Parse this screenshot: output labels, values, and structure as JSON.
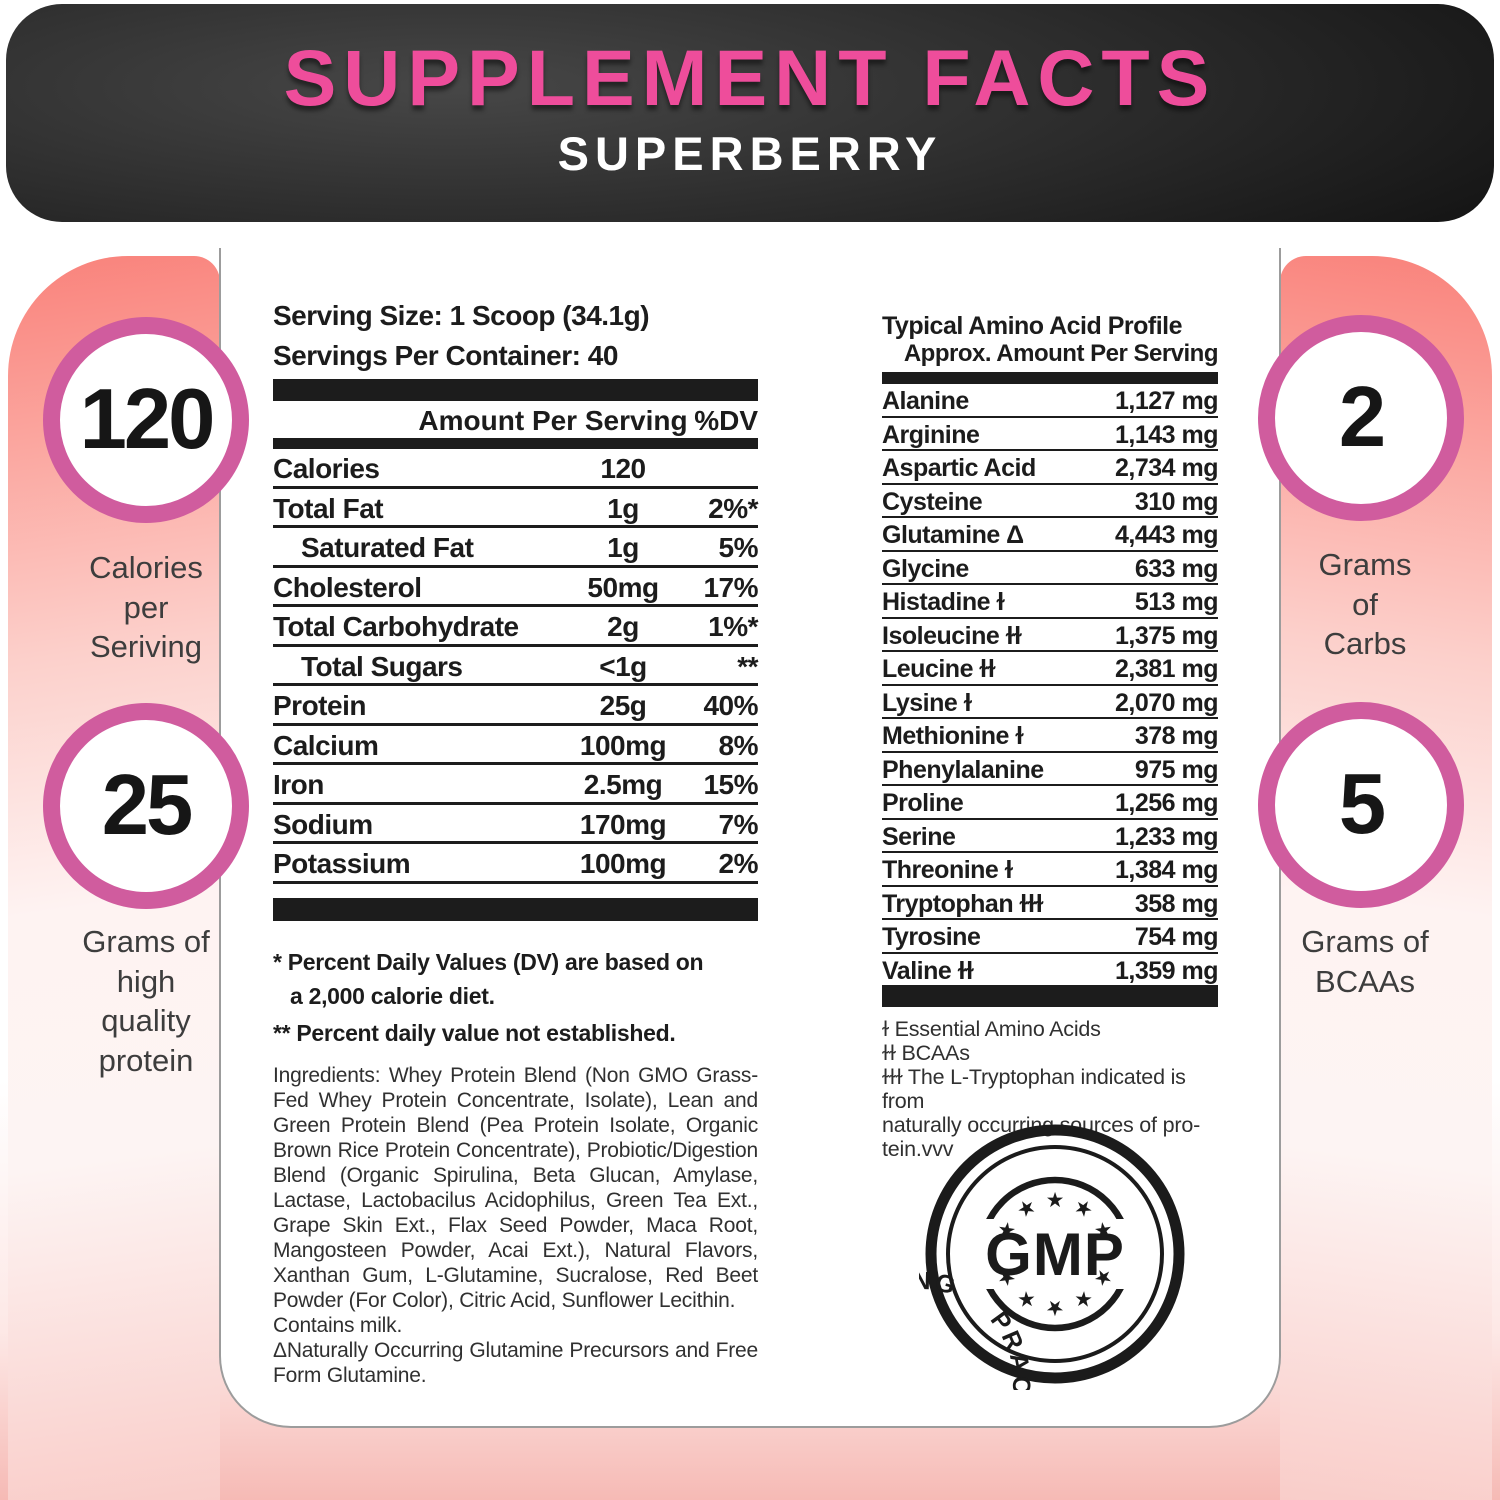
{
  "theme": {
    "pink": "#ee4d9b",
    "ring": "#d05c9e",
    "ink": "#1c1c1c",
    "salmon": "#f9827b"
  },
  "header": {
    "title": "SUPPLEMENT FACTS",
    "subtitle": "SUPERBERRY"
  },
  "highlights": [
    {
      "value": "120",
      "label": "Calories\nper\nSeriving"
    },
    {
      "value": "25",
      "label": "Grams of\nhigh\nquality\nprotein"
    },
    {
      "value": "2",
      "label": "Grams\nof\nCarbs"
    },
    {
      "value": "5",
      "label": "Grams of\nBCAAs"
    }
  ],
  "facts": {
    "serving_size": "Serving Size: 1 Scoop (34.1g)",
    "servings_per_container": "Servings Per Container: 40",
    "amount_header": "Amount Per Serving",
    "dv_header": "%DV",
    "rows": [
      {
        "name": "Calories",
        "amount": "120",
        "dv": "",
        "indent": false
      },
      {
        "name": "Total Fat",
        "amount": "1g",
        "dv": "2%*",
        "indent": false
      },
      {
        "name": "Saturated Fat",
        "amount": "1g",
        "dv": "5%",
        "indent": true
      },
      {
        "name": "Cholesterol",
        "amount": "50mg",
        "dv": "17%",
        "indent": false
      },
      {
        "name": "Total Carbohydrate",
        "amount": "2g",
        "dv": "1%*",
        "indent": false
      },
      {
        "name": "Total Sugars",
        "amount": "<1g",
        "dv": "**",
        "indent": true
      },
      {
        "name": "Protein",
        "amount": "25g",
        "dv": "40%",
        "indent": false
      },
      {
        "name": "Calcium",
        "amount": "100mg",
        "dv": "8%",
        "indent": false
      },
      {
        "name": "Iron",
        "amount": "2.5mg",
        "dv": "15%",
        "indent": false
      },
      {
        "name": "Sodium",
        "amount": "170mg",
        "dv": "7%",
        "indent": false
      },
      {
        "name": "Potassium",
        "amount": "100mg",
        "dv": "2%",
        "indent": false
      }
    ],
    "dv_note_line1": "* Percent Daily Values (DV) are based on",
    "dv_note_line2": "a 2,000 calorie diet.",
    "dv_note2": "** Percent daily value not established.",
    "ingredients": "Ingredients: Whey Protein Blend (Non GMO Grass-Fed Whey Protein Concentrate, Isolate), Lean and Green Protein Blend (Pea Protein Isolate, Organic Brown Rice Protein Concentrate), Probiotic/Digestion Blend (Organic Spirulina, Beta Glucan, Amylase, Lactase, Lactobacilus Acidophilus, Green Tea Ext., Grape Skin Ext., Flax Seed Powder, Maca Root, Mangosteen Powder, Acai Ext.), Natural Flavors, Xanthan Gum, L-Glutamine, Sucralose, Red Beet Powder (For Color), Citric Acid, Sunflower Lecithin.",
    "contains": "Contains milk.",
    "glutamine_note": "ΔNaturally Occurring Glutamine Precursors and Free Form Glutamine."
  },
  "amino": {
    "title": "Typical Amino Acid Profile",
    "subtitle": "Approx. Amount Per Serving",
    "rows": [
      {
        "name": "Alanine",
        "amount": "1,127 mg"
      },
      {
        "name": "Arginine",
        "amount": "1,143 mg"
      },
      {
        "name": "Aspartic Acid",
        "amount": "2,734 mg"
      },
      {
        "name": "Cysteine",
        "amount": "310 mg"
      },
      {
        "name": "Glutamine Δ",
        "amount": "4,443 mg"
      },
      {
        "name": "Glycine",
        "amount": "633 mg"
      },
      {
        "name": "Histadine ɫ",
        "amount": "513 mg"
      },
      {
        "name": "Isoleucine ɫɫ",
        "amount": "1,375 mg"
      },
      {
        "name": "Leucine ɫɫ",
        "amount": "2,381 mg"
      },
      {
        "name": "Lysine ɫ",
        "amount": "2,070 mg"
      },
      {
        "name": "Methionine ɫ",
        "amount": "378 mg"
      },
      {
        "name": "Phenylalanine",
        "amount": "975 mg"
      },
      {
        "name": "Proline",
        "amount": "1,256 mg"
      },
      {
        "name": "Serine",
        "amount": "1,233 mg"
      },
      {
        "name": "Threonine ɫ",
        "amount": "1,384 mg"
      },
      {
        "name": "Tryptophan ɫɫɫ",
        "amount": "358 mg"
      },
      {
        "name": "Tyrosine",
        "amount": "754 mg"
      },
      {
        "name": "Valine ɫɫ",
        "amount": "1,359 mg"
      }
    ],
    "footnotes": [
      "ɫ Essential Amino Acids",
      "ɫɫ BCAAs",
      "ɫɫɫ The L-Tryptophan indicated is from\nnaturally occurring sources of pro-\ntein.vvv"
    ]
  },
  "seal": {
    "ring_text": "PRACTICE • GOOD MANUFACTURING",
    "center_text": "GMP"
  }
}
